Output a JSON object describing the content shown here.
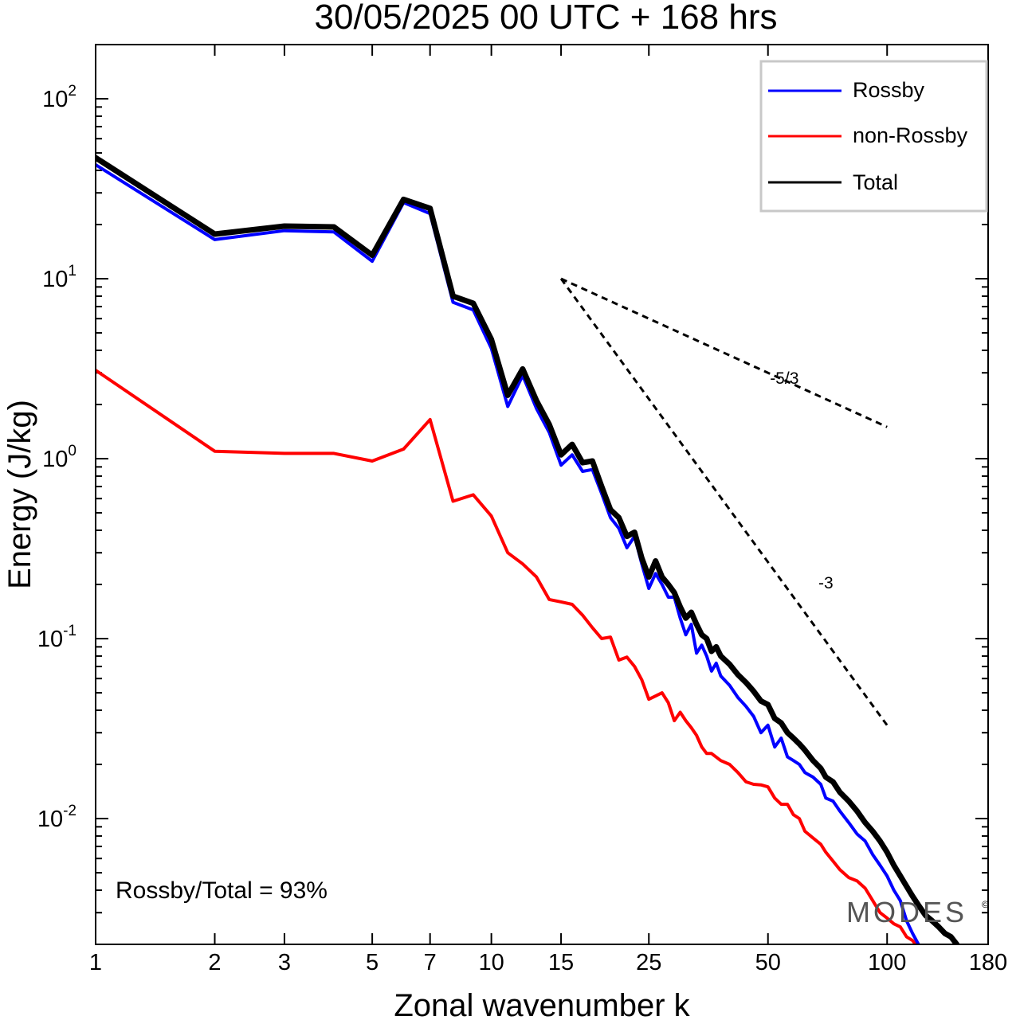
{
  "chart_data": {
    "type": "line",
    "title": "30/05/2025  00 UTC  + 168 hrs",
    "xlabel": "Zonal wavenumber k",
    "ylabel": "Energy (J/kg)",
    "xscale": "log",
    "yscale": "log",
    "xlim": [
      1,
      180
    ],
    "ylim": [
      0.002,
      200
    ],
    "x_ticks": [
      1,
      2,
      3,
      5,
      7,
      10,
      15,
      25,
      50,
      100,
      180
    ],
    "y_ticks": [
      {
        "value": 100,
        "base": "10",
        "exp": "2"
      },
      {
        "value": 10,
        "base": "10",
        "exp": "1"
      },
      {
        "value": 1,
        "base": "10",
        "exp": "0"
      },
      {
        "value": 0.1,
        "base": "10",
        "exp": "-1"
      },
      {
        "value": 0.01,
        "base": "10",
        "exp": "-2"
      }
    ],
    "legend_position": "top-right",
    "colors": {
      "rossby": "#0000ff",
      "non_rossby": "#ff0000",
      "total": "#000000",
      "reference": "#000000"
    },
    "series": [
      {
        "name": "Rossby",
        "color": "#0000ff",
        "points": [
          [
            1,
            43
          ],
          [
            2,
            16.5
          ],
          [
            3,
            18.5
          ],
          [
            4,
            18.2
          ],
          [
            5,
            12.5
          ],
          [
            6,
            26.5
          ],
          [
            7,
            23
          ],
          [
            8,
            7.4
          ],
          [
            9,
            6.7
          ],
          [
            10,
            4.1
          ],
          [
            11,
            1.95
          ],
          [
            12,
            2.9
          ],
          [
            13,
            1.9
          ],
          [
            14,
            1.4
          ],
          [
            15,
            0.92
          ],
          [
            16,
            1.05
          ],
          [
            17,
            0.85
          ],
          [
            18,
            0.87
          ],
          [
            19,
            0.64
          ],
          [
            20,
            0.47
          ],
          [
            21,
            0.41
          ],
          [
            22,
            0.32
          ],
          [
            23,
            0.37
          ],
          [
            24,
            0.26
          ],
          [
            25,
            0.19
          ],
          [
            26,
            0.23
          ],
          [
            27,
            0.2
          ],
          [
            28,
            0.17
          ],
          [
            29,
            0.17
          ],
          [
            30,
            0.13
          ],
          [
            31,
            0.105
          ],
          [
            32,
            0.12
          ],
          [
            33,
            0.083
          ],
          [
            34,
            0.092
          ],
          [
            35,
            0.08
          ],
          [
            36,
            0.066
          ],
          [
            37,
            0.073
          ],
          [
            38,
            0.062
          ],
          [
            40,
            0.055
          ],
          [
            42,
            0.047
          ],
          [
            44,
            0.042
          ],
          [
            46,
            0.037
          ],
          [
            48,
            0.03
          ],
          [
            50,
            0.033
          ],
          [
            52,
            0.025
          ],
          [
            54,
            0.028
          ],
          [
            56,
            0.022
          ],
          [
            58,
            0.021
          ],
          [
            60,
            0.02
          ],
          [
            62,
            0.018
          ],
          [
            65,
            0.017
          ],
          [
            68,
            0.0155
          ],
          [
            70,
            0.013
          ],
          [
            73,
            0.0125
          ],
          [
            76,
            0.011
          ],
          [
            80,
            0.0095
          ],
          [
            84,
            0.0082
          ],
          [
            88,
            0.0075
          ],
          [
            92,
            0.0063
          ],
          [
            96,
            0.0055
          ],
          [
            100,
            0.0048
          ],
          [
            104,
            0.004
          ],
          [
            108,
            0.0035
          ],
          [
            112,
            0.0027
          ],
          [
            116,
            0.0023
          ],
          [
            120,
            0.002
          ]
        ]
      },
      {
        "name": "non-Rossby",
        "color": "#ff0000",
        "points": [
          [
            1,
            3.1
          ],
          [
            2,
            1.1
          ],
          [
            3,
            1.07
          ],
          [
            4,
            1.07
          ],
          [
            5,
            0.97
          ],
          [
            6,
            1.13
          ],
          [
            7,
            1.65
          ],
          [
            8,
            0.58
          ],
          [
            9,
            0.63
          ],
          [
            10,
            0.48
          ],
          [
            11,
            0.3
          ],
          [
            12,
            0.26
          ],
          [
            13,
            0.22
          ],
          [
            14,
            0.165
          ],
          [
            15,
            0.16
          ],
          [
            16,
            0.155
          ],
          [
            17,
            0.135
          ],
          [
            18,
            0.115
          ],
          [
            19,
            0.1
          ],
          [
            20,
            0.102
          ],
          [
            21,
            0.076
          ],
          [
            22,
            0.079
          ],
          [
            23,
            0.07
          ],
          [
            24,
            0.059
          ],
          [
            25,
            0.046
          ],
          [
            26,
            0.048
          ],
          [
            27,
            0.05
          ],
          [
            28,
            0.044
          ],
          [
            29,
            0.035
          ],
          [
            30,
            0.039
          ],
          [
            31,
            0.035
          ],
          [
            32,
            0.032
          ],
          [
            33,
            0.029
          ],
          [
            34,
            0.025
          ],
          [
            35,
            0.023
          ],
          [
            36,
            0.023
          ],
          [
            38,
            0.021
          ],
          [
            40,
            0.02
          ],
          [
            42,
            0.018
          ],
          [
            44,
            0.016
          ],
          [
            46,
            0.0155
          ],
          [
            48,
            0.0154
          ],
          [
            50,
            0.015
          ],
          [
            52,
            0.013
          ],
          [
            54,
            0.012
          ],
          [
            56,
            0.012
          ],
          [
            58,
            0.0105
          ],
          [
            60,
            0.01
          ],
          [
            62,
            0.0085
          ],
          [
            65,
            0.0078
          ],
          [
            68,
            0.0072
          ],
          [
            70,
            0.0065
          ],
          [
            73,
            0.0058
          ],
          [
            76,
            0.0052
          ],
          [
            80,
            0.0047
          ],
          [
            84,
            0.0045
          ],
          [
            88,
            0.0041
          ],
          [
            92,
            0.0035
          ],
          [
            96,
            0.003
          ],
          [
            100,
            0.0028
          ],
          [
            104,
            0.0026
          ],
          [
            108,
            0.0025
          ],
          [
            112,
            0.0022
          ],
          [
            116,
            0.0021
          ],
          [
            118,
            0.002
          ]
        ]
      },
      {
        "name": "Total",
        "color": "#000000",
        "points": [
          [
            1,
            47
          ],
          [
            2,
            17.7
          ],
          [
            3,
            19.6
          ],
          [
            4,
            19.4
          ],
          [
            5,
            13.5
          ],
          [
            6,
            27.6
          ],
          [
            7,
            24.6
          ],
          [
            8,
            8
          ],
          [
            9,
            7.3
          ],
          [
            10,
            4.6
          ],
          [
            11,
            2.25
          ],
          [
            12,
            3.15
          ],
          [
            13,
            2.1
          ],
          [
            14,
            1.55
          ],
          [
            15,
            1.05
          ],
          [
            16,
            1.2
          ],
          [
            17,
            0.95
          ],
          [
            18,
            0.97
          ],
          [
            19,
            0.7
          ],
          [
            20,
            0.52
          ],
          [
            21,
            0.47
          ],
          [
            22,
            0.37
          ],
          [
            23,
            0.39
          ],
          [
            24,
            0.28
          ],
          [
            25,
            0.22
          ],
          [
            26,
            0.27
          ],
          [
            27,
            0.22
          ],
          [
            28,
            0.2
          ],
          [
            29,
            0.18
          ],
          [
            30,
            0.15
          ],
          [
            31,
            0.13
          ],
          [
            32,
            0.14
          ],
          [
            33,
            0.12
          ],
          [
            34,
            0.105
          ],
          [
            35,
            0.1
          ],
          [
            36,
            0.085
          ],
          [
            37,
            0.09
          ],
          [
            38,
            0.08
          ],
          [
            40,
            0.072
          ],
          [
            42,
            0.063
          ],
          [
            44,
            0.057
          ],
          [
            46,
            0.051
          ],
          [
            48,
            0.045
          ],
          [
            50,
            0.043
          ],
          [
            52,
            0.036
          ],
          [
            54,
            0.034
          ],
          [
            56,
            0.03
          ],
          [
            58,
            0.028
          ],
          [
            60,
            0.026
          ],
          [
            62,
            0.024
          ],
          [
            65,
            0.021
          ],
          [
            68,
            0.019
          ],
          [
            70,
            0.017
          ],
          [
            73,
            0.016
          ],
          [
            76,
            0.014
          ],
          [
            80,
            0.0125
          ],
          [
            84,
            0.011
          ],
          [
            88,
            0.0095
          ],
          [
            92,
            0.0085
          ],
          [
            96,
            0.0075
          ],
          [
            100,
            0.0065
          ],
          [
            104,
            0.0055
          ],
          [
            108,
            0.0048
          ],
          [
            112,
            0.0042
          ],
          [
            116,
            0.0037
          ],
          [
            120,
            0.0033
          ],
          [
            125,
            0.0029
          ],
          [
            130,
            0.0027
          ],
          [
            135,
            0.0025
          ],
          [
            140,
            0.0023
          ],
          [
            145,
            0.0022
          ],
          [
            150,
            0.002
          ]
        ]
      }
    ],
    "reference_lines": [
      {
        "label": "-5/3",
        "from": [
          15,
          10
        ],
        "to": [
          100,
          1.5
        ],
        "label_at": [
          55,
          2.6
        ]
      },
      {
        "label": "-3",
        "from": [
          15,
          10
        ],
        "to": [
          100,
          0.033
        ],
        "label_at": [
          70,
          0.19
        ]
      }
    ],
    "annotations": {
      "ratio": "Rossby/Total = 93%",
      "watermark": "MODES",
      "watermark_mark": "©"
    }
  }
}
